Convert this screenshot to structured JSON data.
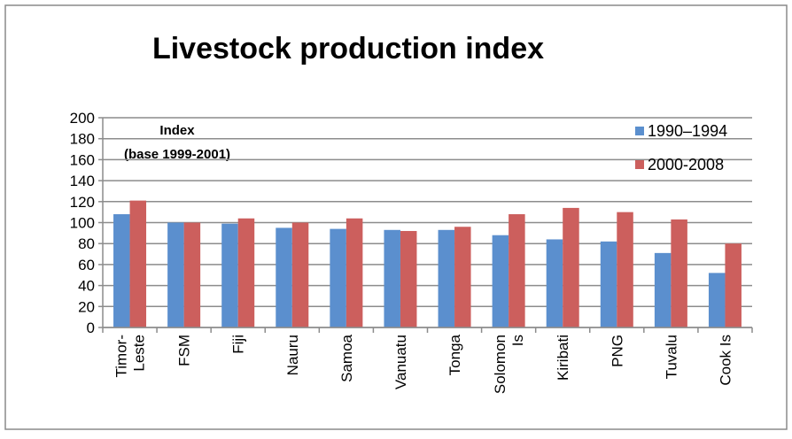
{
  "chart_data": {
    "type": "bar",
    "title": "Livestock production index",
    "ylabel_lines": [
      "Index",
      "(base 1999-2001)"
    ],
    "xlabel": "",
    "ylim": [
      0,
      200
    ],
    "ytick_step": 20,
    "yticks": [
      "0",
      "20",
      "40",
      "60",
      "80",
      "100",
      "120",
      "140",
      "160",
      "180",
      "200"
    ],
    "grid": true,
    "legend_position": "right",
    "categories": [
      [
        "Timor-",
        "Leste"
      ],
      [
        "FSM"
      ],
      [
        "Fiji"
      ],
      [
        "Nauru"
      ],
      [
        "Samoa"
      ],
      [
        "Vanuatu"
      ],
      [
        "Tonga"
      ],
      [
        "Solomon",
        "Is"
      ],
      [
        "Kiribati"
      ],
      [
        "PNG"
      ],
      [
        "Tuvalu"
      ],
      [
        "Cook Is"
      ]
    ],
    "series": [
      {
        "name": "1990–1994",
        "color": "#5b8fce",
        "values": [
          108,
          100,
          99,
          95,
          94,
          93,
          93,
          88,
          84,
          82,
          71,
          52
        ]
      },
      {
        "name": "2000-2008",
        "color": "#cc5f5d",
        "values": [
          121,
          100,
          104,
          100,
          104,
          92,
          96,
          108,
          114,
          110,
          103,
          80
        ]
      }
    ]
  }
}
